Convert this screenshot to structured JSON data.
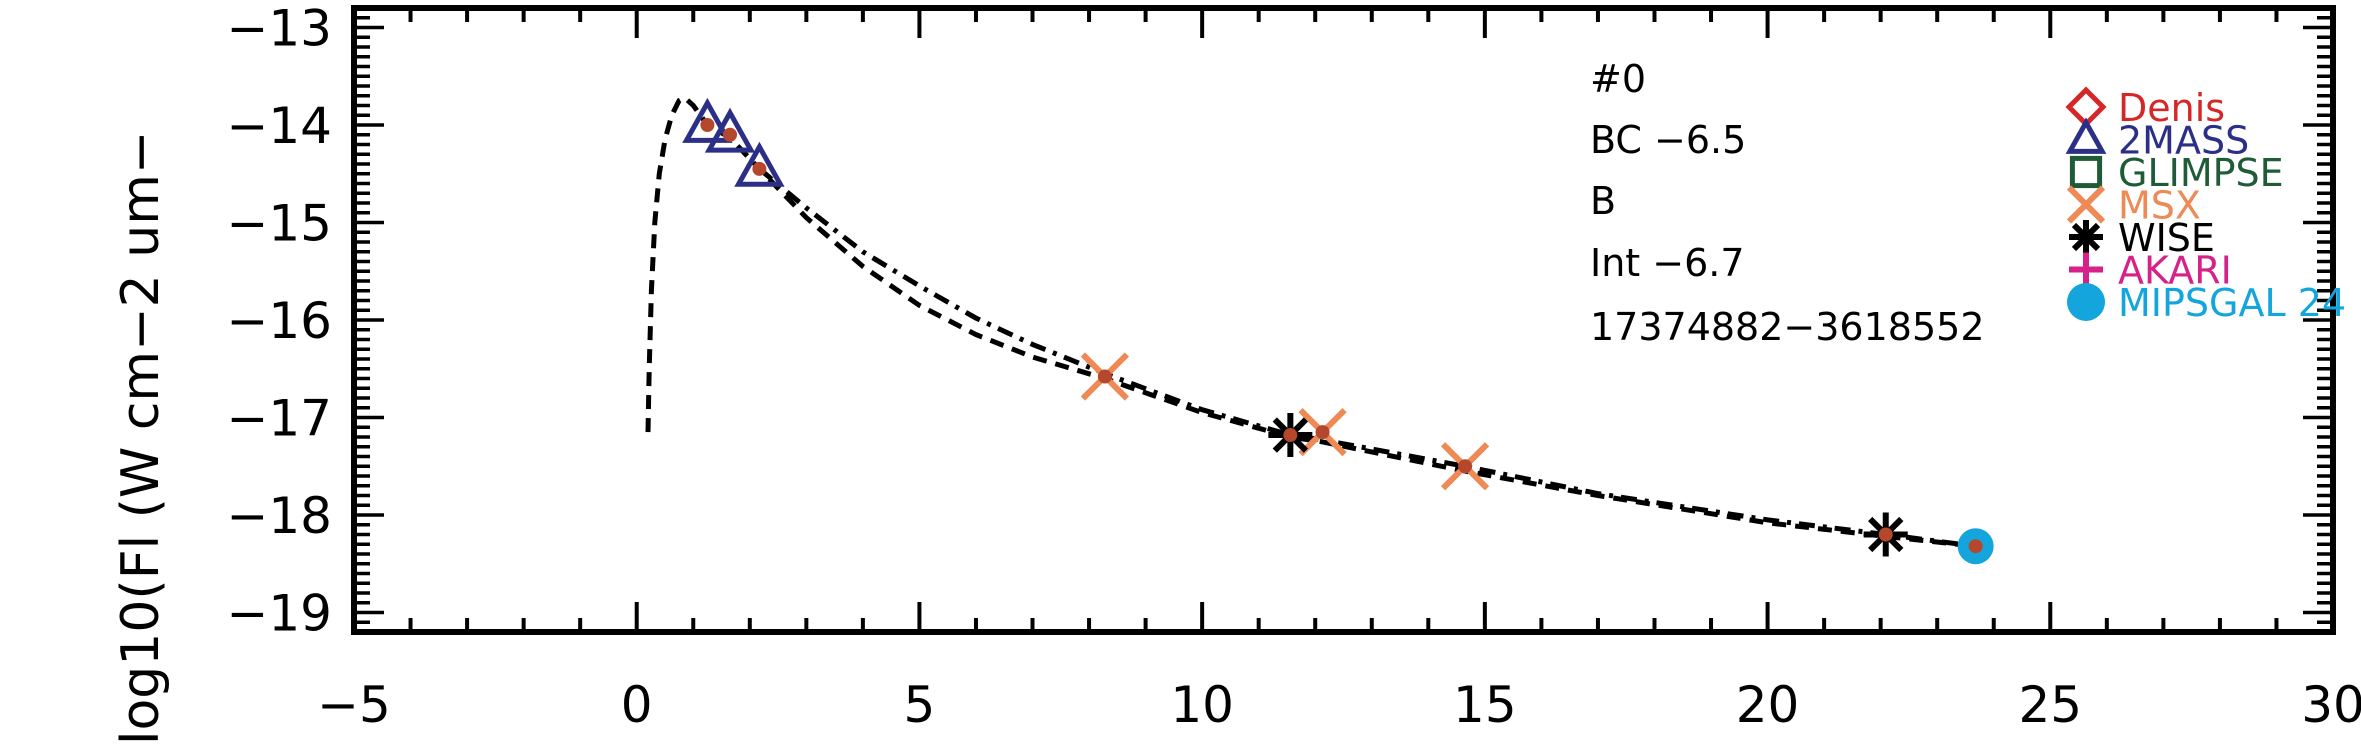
{
  "chart_data": {
    "type": "scatter",
    "title": "",
    "xlabel": "",
    "ylabel": "log10(Fl (W cm−2 um−",
    "xlim": [
      -5,
      30
    ],
    "ylim": [
      -19.2,
      -12.8
    ],
    "x_ticks": [
      -5,
      0,
      5,
      10,
      15,
      20,
      25,
      30
    ],
    "x_tick_labels": [
      "−5",
      "0",
      "5",
      "10",
      "15",
      "20",
      "25",
      "30"
    ],
    "y_ticks": [
      -13,
      -14,
      -15,
      -16,
      -17,
      -18,
      -19
    ],
    "y_tick_labels": [
      "−13",
      "−14",
      "−15",
      "−16",
      "−17",
      "−18",
      "−19"
    ],
    "annotations": [
      "#0",
      "BC −6.5",
      "B",
      "Int −6.7",
      "17374882−3618552"
    ],
    "legend_position": "top-right",
    "legend": [
      {
        "name": "Denis",
        "color": "#d62728",
        "marker": "diamond"
      },
      {
        "name": "2MASS",
        "color": "#2b2f86",
        "marker": "triangle"
      },
      {
        "name": "GLIMPSE",
        "color": "#1e5b36",
        "marker": "square"
      },
      {
        "name": "MSX",
        "color": "#ee8a55",
        "marker": "x"
      },
      {
        "name": "WISE",
        "color": "#000000",
        "marker": "asterisk"
      },
      {
        "name": "AKARI",
        "color": "#d6218a",
        "marker": "plus"
      },
      {
        "name": "MIPSGAL 24",
        "color": "#14a5dc",
        "marker": "circle"
      }
    ],
    "series": [
      {
        "marker": "triangle",
        "color": "#2b2f86",
        "x": [
          1.25,
          1.65,
          2.17
        ],
        "y": [
          -14.0,
          -14.1,
          -14.45
        ]
      },
      {
        "marker": "x",
        "color": "#ee8a55",
        "x": [
          8.28,
          12.13,
          14.65
        ],
        "y": [
          -16.58,
          -17.15,
          -17.5
        ]
      },
      {
        "marker": "asterisk",
        "color": "#000000",
        "x": [
          11.56,
          22.09
        ],
        "y": [
          -17.18,
          -18.2
        ]
      },
      {
        "marker": "circle",
        "color": "#14a5dc",
        "x": [
          23.68
        ],
        "y": [
          -18.32
        ]
      },
      {
        "marker": "dot",
        "color": "#b5472d",
        "x": [
          1.25,
          1.65,
          2.17,
          8.28,
          11.56,
          12.13,
          14.65,
          22.09,
          23.68
        ],
        "y": [
          -14.0,
          -14.1,
          -14.45,
          -16.58,
          -17.18,
          -17.15,
          -17.5,
          -18.2,
          -18.32
        ]
      }
    ],
    "curves": [
      {
        "style": "dashed",
        "x": [
          0.2,
          0.22,
          0.26,
          0.32,
          0.4,
          0.5,
          0.62,
          0.75,
          0.85,
          1.0,
          1.25,
          1.65,
          2.17,
          3.0,
          4.0,
          5.0,
          6.0,
          7.0,
          8.28,
          10.0,
          11.56,
          12.13,
          14.65,
          17.0,
          20.0,
          22.09,
          23.68
        ],
        "y": [
          -17.15,
          -16.5,
          -15.7,
          -15.0,
          -14.5,
          -14.15,
          -13.9,
          -13.75,
          -13.72,
          -13.8,
          -14.0,
          -14.13,
          -14.45,
          -14.95,
          -15.45,
          -15.85,
          -16.15,
          -16.38,
          -16.6,
          -16.95,
          -17.2,
          -17.25,
          -17.55,
          -17.8,
          -18.08,
          -18.22,
          -18.32
        ]
      },
      {
        "style": "dashdot",
        "x": [
          2.17,
          3.0,
          4.0,
          5.0,
          6.0,
          7.0,
          8.28,
          10.0,
          11.56,
          12.13,
          14.65,
          17.0,
          20.0,
          22.09,
          23.68
        ],
        "y": [
          -14.45,
          -14.85,
          -15.3,
          -15.65,
          -15.98,
          -16.25,
          -16.55,
          -16.92,
          -17.18,
          -17.23,
          -17.5,
          -17.78,
          -18.05,
          -18.2,
          -18.32
        ]
      }
    ]
  }
}
